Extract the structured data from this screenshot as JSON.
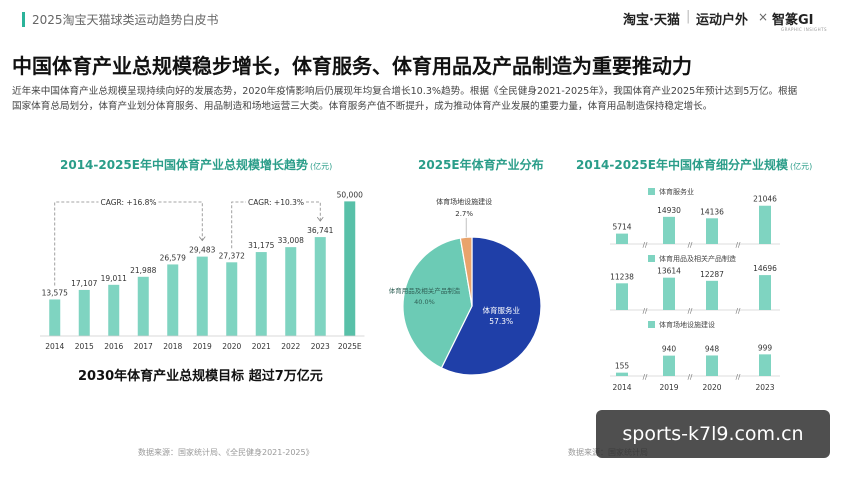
{
  "header": {
    "doc_title": "2025淘宝天猫球类运动趋势白皮书",
    "brand_taobao": "淘宝·天猫",
    "brand_divider": "|",
    "brand_sport": "运动户外",
    "brand_x": "×",
    "brand_gi": "智篆GI",
    "brand_gi_sub": "GRAPHIC INSIGHTS"
  },
  "headline": "中国体育产业总规模稳步增长，体育服务、体育用品及产品制造为重要推动力",
  "intro": "近年来中国体育产业总规模呈现持续向好的发展态势，2020年疫情影响后仍展现年均复合增长10.3%趋势。根据《全民健身2021-2025年》，我国体育产业2025年预计达到5万亿。根据国家体育总局划分，体育产业划分体育服务、用品制造和场地运营三大类。体育服务产值不断提升，成为推动体育产业发展的重要力量，体育用品制造保持稳定增长。",
  "colors": {
    "accent": "#2bb39a",
    "bar": "#7fd4c1",
    "bar_dark": "#58c0a8",
    "blue": "#1f3fa8",
    "teal": "#6ccbb5",
    "orange": "#e9a36b"
  },
  "chart_data": [
    {
      "type": "bar",
      "title": "2014-2025E年中国体育产业总规模增长趋势",
      "unit": "(亿元)",
      "categories": [
        "2014",
        "2015",
        "2016",
        "2017",
        "2018",
        "2019",
        "2020",
        "2021",
        "2022",
        "2023",
        "2025E"
      ],
      "values": [
        13575,
        17107,
        19011,
        21988,
        26579,
        29483,
        27372,
        31175,
        33008,
        36741,
        50000
      ],
      "value_labels": [
        "13,575",
        "17,107",
        "19,011",
        "21,988",
        "26,579",
        "29,483",
        "27,372",
        "31,175",
        "33,008",
        "36,741",
        "50,000"
      ],
      "ylim": [
        0,
        52000
      ],
      "annotations": [
        "CAGR: +16.8%",
        "CAGR: +10.3%"
      ]
    },
    {
      "type": "pie",
      "title": "2025E年体育产业分布",
      "slices": [
        {
          "name": "体育服务业",
          "value": 57.3,
          "label": "57.3%"
        },
        {
          "name": "体育用品及相关产品制造",
          "value": 40.0,
          "label": "40.0%"
        },
        {
          "name": "体育场地设施建设",
          "value": 2.7,
          "label": "2.7%"
        }
      ]
    },
    {
      "type": "bar",
      "title": "2014-2025E年中国体育细分产业规模",
      "unit": "(亿元)",
      "categories": [
        "2014",
        "2019",
        "2020",
        "2023"
      ],
      "series": [
        {
          "name": "体育服务业",
          "values": [
            5714,
            14930,
            14136,
            21046
          ],
          "labels": [
            "5714",
            "14930",
            "14136",
            "21046"
          ]
        },
        {
          "name": "体育用品及相关产品制造",
          "values": [
            11238,
            13614,
            12287,
            14696
          ],
          "labels": [
            "11238",
            "13614",
            "12287",
            "14696"
          ]
        },
        {
          "name": "体育场地设施建设",
          "values": [
            155,
            940,
            948,
            999
          ],
          "labels": [
            "155",
            "940",
            "948",
            "999"
          ]
        }
      ]
    }
  ],
  "target_text": "2030年体育产业总规模目标  超过7万亿元",
  "sources": {
    "left": "数据来源：国家统计局、《全民健身2021-2025》",
    "right": "数据来源：国家统计局"
  },
  "watermark": "sports-k7l9.com.cn"
}
